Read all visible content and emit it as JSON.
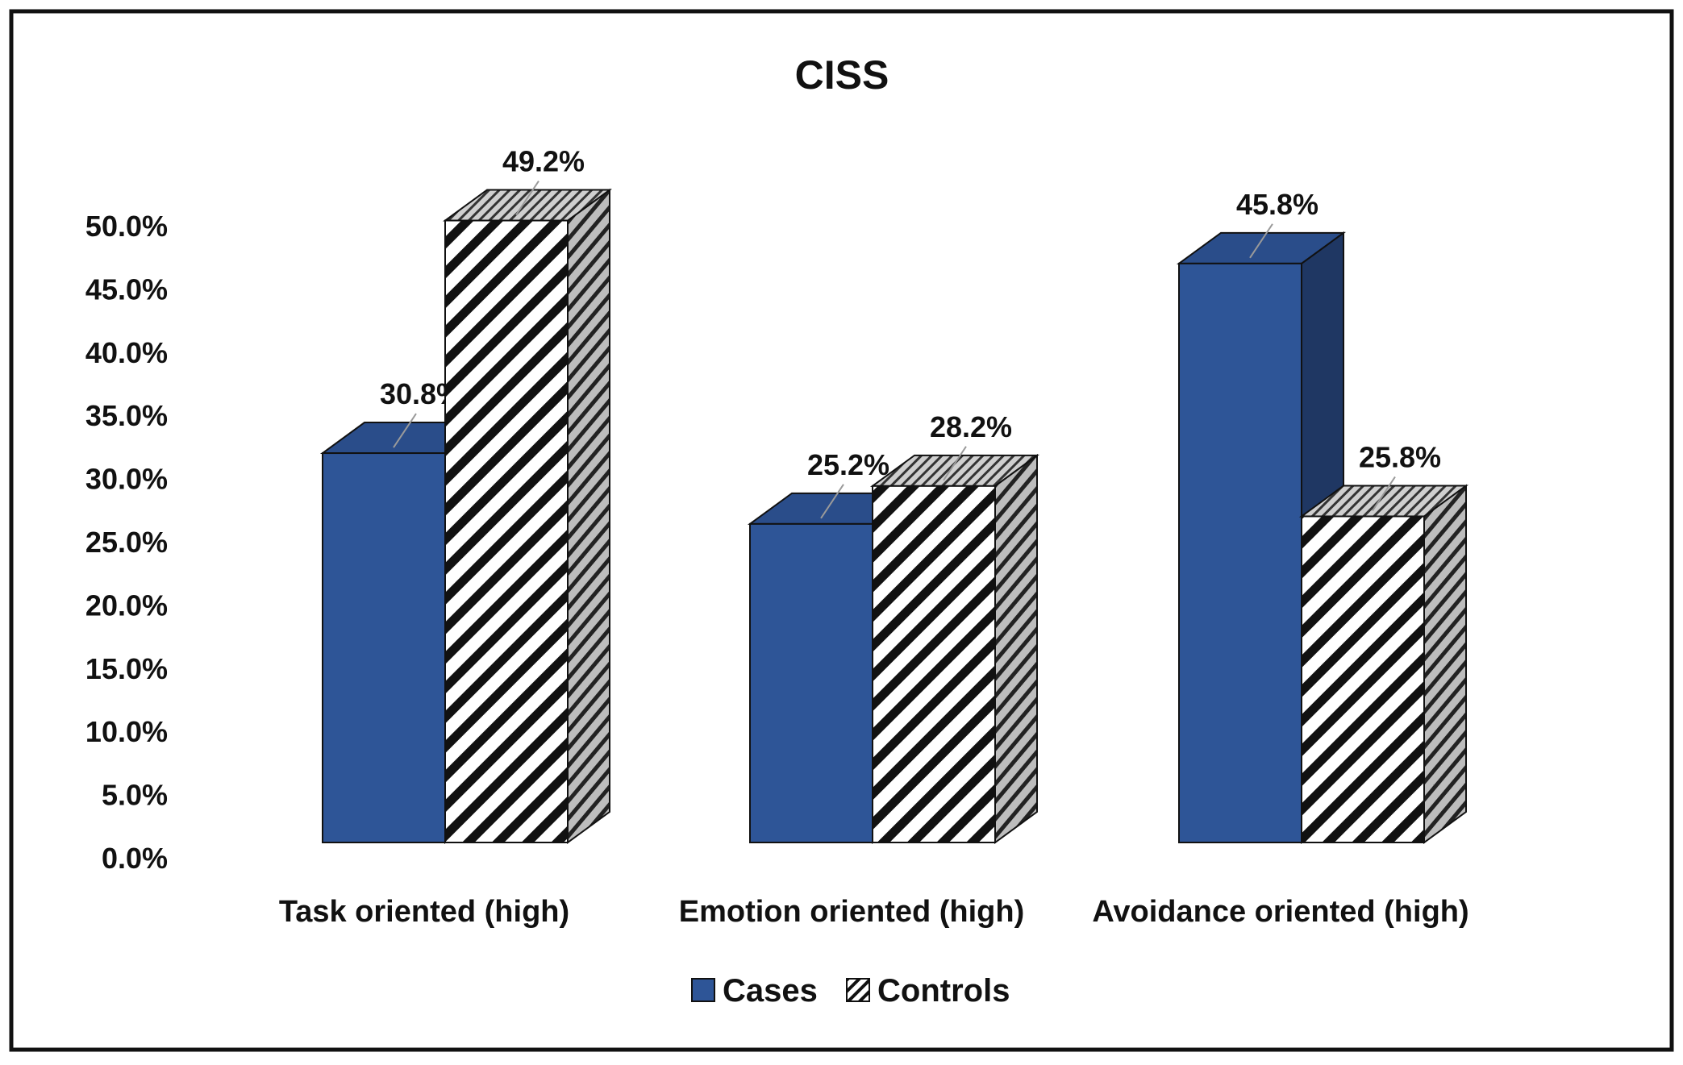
{
  "chart_data": {
    "type": "bar",
    "title": "CISS",
    "categories": [
      "Task oriented (high)",
      "Emotion oriented (high)",
      "Avoidance oriented (high)"
    ],
    "series": [
      {
        "name": "Cases",
        "values": [
          30.8,
          25.2,
          45.8
        ],
        "labels": [
          "30.8%",
          "25.2%",
          "45.8%"
        ],
        "color": "#2e5597"
      },
      {
        "name": "Controls",
        "values": [
          49.2,
          28.2,
          25.8
        ],
        "labels": [
          "49.2%",
          "28.2%",
          "25.8%"
        ],
        "color": "#ffffff"
      }
    ],
    "yticks": [
      "0.0%",
      "5.0%",
      "10.0%",
      "15.0%",
      "20.0%",
      "25.0%",
      "30.0%",
      "35.0%",
      "40.0%",
      "45.0%",
      "50.0%"
    ],
    "ylim": [
      0,
      50
    ],
    "xlabel": "",
    "ylabel": "",
    "legend_position": "bottom",
    "grid": false,
    "style": "3d-column"
  }
}
